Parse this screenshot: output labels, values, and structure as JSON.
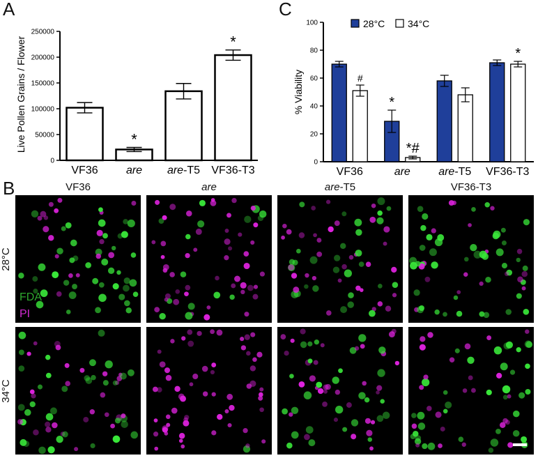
{
  "panel_labels": {
    "a": "A",
    "b": "B",
    "c": "C"
  },
  "chart_data": [
    {
      "type": "bar",
      "panel": "A",
      "ylabel": "Live Pollen Grains / Flower",
      "xlabel": "",
      "ylim": [
        0,
        250000
      ],
      "yticks": [
        0,
        50000,
        100000,
        150000,
        200000,
        250000
      ],
      "categories": [
        {
          "parts": [
            {
              "t": "VF36",
              "i": false
            }
          ]
        },
        {
          "parts": [
            {
              "t": "are",
              "i": true
            }
          ]
        },
        {
          "parts": [
            {
              "t": "are",
              "i": true
            },
            {
              "t": "-T5",
              "i": false
            }
          ]
        },
        {
          "parts": [
            {
              "t": "VF36-T3",
              "i": false
            }
          ]
        }
      ],
      "values": [
        102000,
        21000,
        134000,
        204000
      ],
      "errors": [
        10000,
        4000,
        15000,
        10000
      ],
      "annotations": [
        "",
        "*",
        "",
        "*"
      ],
      "bar_color": "#ffffff"
    },
    {
      "type": "bar",
      "panel": "C",
      "ylabel": "% Viability",
      "xlabel": "",
      "ylim": [
        0,
        100
      ],
      "yticks": [
        0,
        20,
        40,
        60,
        80,
        100
      ],
      "categories": [
        {
          "parts": [
            {
              "t": "VF36",
              "i": false
            }
          ]
        },
        {
          "parts": [
            {
              "t": "are",
              "i": true
            }
          ]
        },
        {
          "parts": [
            {
              "t": "are",
              "i": true
            },
            {
              "t": "-T5",
              "i": false
            }
          ]
        },
        {
          "parts": [
            {
              "t": "VF36-T3",
              "i": false
            }
          ]
        }
      ],
      "series": [
        {
          "name": "28°C",
          "color": "#1f3f9a",
          "values": [
            70,
            29,
            58,
            71
          ],
          "errors": [
            2,
            8,
            4,
            2
          ],
          "annotations": [
            "",
            "*",
            "",
            ""
          ]
        },
        {
          "name": "34°C",
          "color": "#ffffff",
          "values": [
            51,
            3,
            48,
            70
          ],
          "errors": [
            4,
            1,
            5,
            2
          ],
          "annotations": [
            "#",
            "*#",
            "",
            "*"
          ]
        }
      ],
      "legend_position": "top"
    }
  ],
  "micrographs": {
    "column_labels": [
      {
        "parts": [
          {
            "t": "VF36",
            "i": false
          }
        ]
      },
      {
        "parts": [
          {
            "t": "are",
            "i": true
          }
        ]
      },
      {
        "parts": [
          {
            "t": "are",
            "i": true
          },
          {
            "t": "-T5",
            "i": false
          }
        ]
      },
      {
        "parts": [
          {
            "t": "VF36-T3",
            "i": false
          }
        ]
      }
    ],
    "row_labels": [
      "28°C",
      "34°C"
    ],
    "stain_labels": [
      {
        "text": "FDA",
        "color": "#2ea82e"
      },
      {
        "text": "PI",
        "color": "#d22ad2"
      }
    ],
    "fda_color": "#39e639",
    "pi_color": "#dd22dd",
    "live_fraction_28C": [
      0.7,
      0.29,
      0.58,
      0.71
    ],
    "live_fraction_34C": [
      0.51,
      0.03,
      0.48,
      0.7
    ]
  }
}
